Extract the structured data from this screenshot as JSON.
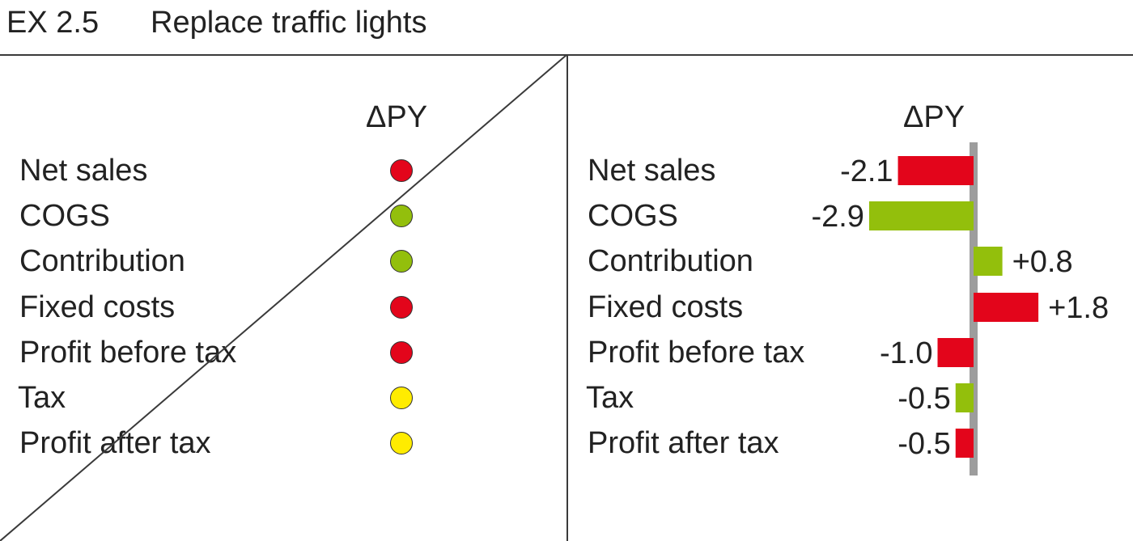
{
  "title": {
    "code": "EX 2.5",
    "text": "Replace traffic lights"
  },
  "colors": {
    "red": "#e3051b",
    "green": "#93bf0c",
    "yellow": "#ffec00",
    "axis": "#9d9d9d",
    "line": "#3a3a3a"
  },
  "left_panel": {
    "header": "ΔPY",
    "rows": [
      {
        "label": "Net sales",
        "status": "red"
      },
      {
        "label": "COGS",
        "status": "green"
      },
      {
        "label": "Contribution",
        "status": "green"
      },
      {
        "label": "Fixed costs",
        "status": "red"
      },
      {
        "label": "Profit before tax",
        "status": "red"
      },
      {
        "label": "Tax",
        "status": "yellow"
      },
      {
        "label": "Profit after tax",
        "status": "yellow"
      }
    ]
  },
  "chart_data": {
    "type": "bar",
    "orientation": "horizontal",
    "header": "ΔPY",
    "categories": [
      "Net sales",
      "COGS",
      "Contribution",
      "Fixed costs",
      "Profit before tax",
      "Tax",
      "Profit after tax"
    ],
    "values": [
      -2.1,
      -2.9,
      0.8,
      1.8,
      -1.0,
      -0.5,
      -0.5
    ],
    "value_labels": [
      "-2.1",
      "-2.9",
      "+0.8",
      "+1.8",
      "-1.0",
      "-0.5",
      "-0.5"
    ],
    "bar_colors": [
      "red",
      "green",
      "green",
      "red",
      "red",
      "green",
      "red"
    ]
  }
}
